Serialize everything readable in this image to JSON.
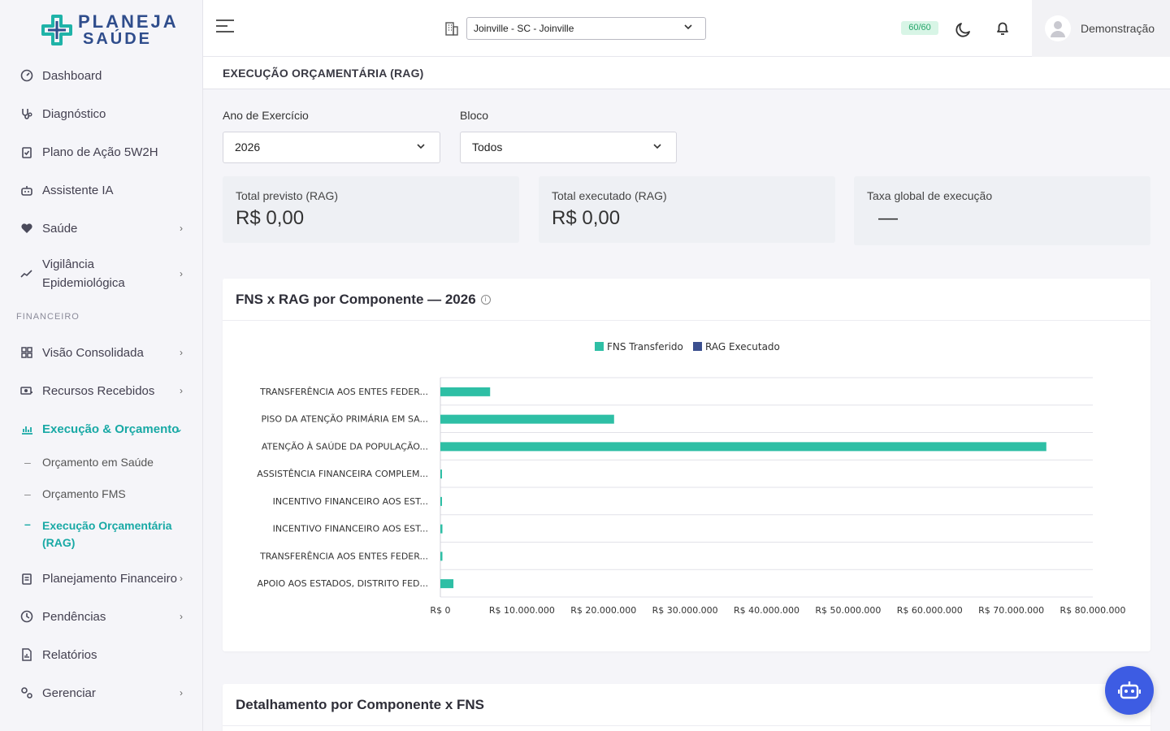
{
  "brand": {
    "line1": "PLANEJA",
    "line2": "SAÚDE"
  },
  "sidebar": {
    "items": [
      {
        "label": "Dashboard",
        "icon": "gauge-icon"
      },
      {
        "label": "Diagnóstico",
        "icon": "stethoscope-icon"
      },
      {
        "label": "Plano de Ação 5W2H",
        "icon": "clipboard-check-icon"
      },
      {
        "label": "Assistente IA",
        "icon": "robot-icon"
      },
      {
        "label": "Saúde",
        "icon": "heart-pulse-icon"
      },
      {
        "label": "Vigilância Epidemiológica",
        "icon": "trend-icon"
      },
      {
        "label": "Visão Consolidada",
        "icon": "grid-icon"
      },
      {
        "label": "Recursos Recebidos",
        "icon": "money-icon"
      },
      {
        "label": "Execução & Orçamento",
        "icon": "chart-icon"
      },
      {
        "label": "Planejamento Financeiro",
        "icon": "clipboard-icon"
      },
      {
        "label": "Pendências",
        "icon": "clock-icon"
      },
      {
        "label": "Relatórios",
        "icon": "report-icon"
      },
      {
        "label": "Gerenciar",
        "icon": "gears-icon"
      }
    ],
    "section_financeiro": "FINANCEIRO",
    "subitems": [
      {
        "label": "Orçamento em Saúde"
      },
      {
        "label": "Orçamento FMS"
      },
      {
        "label": "Execução Orçamentária (RAG)"
      }
    ]
  },
  "topbar": {
    "city": "Joinville - SC - Joinville",
    "quota": "60/60",
    "user": "Demonstração"
  },
  "page": {
    "title": "EXECUÇÃO ORÇAMENTÁRIA (RAG)",
    "filters": {
      "year_label": "Ano de Exercício",
      "year_value": "2026",
      "block_label": "Bloco",
      "block_value": "Todos"
    },
    "stats": [
      {
        "label": "Total previsto (RAG)",
        "value": "R$ 0,00"
      },
      {
        "label": "Total executado (RAG)",
        "value": "R$ 0,00"
      },
      {
        "label": "Taxa global de execução",
        "value": "—"
      }
    ],
    "chart_card_title": "FNS x RAG por Componente — 2026",
    "detail_card_title": "Detalhamento por Componente x FNS"
  },
  "colors": {
    "accent": "#18a9a5",
    "fns": "#2ebfa5",
    "rag": "#3b4f8f",
    "fab": "#3d5ce3"
  },
  "chart_data": {
    "type": "bar",
    "orientation": "horizontal",
    "categories": [
      "TRANSFERÊNCIA AOS ENTES FEDER...",
      "PISO DA ATENÇÃO PRIMÁRIA EM SA...",
      "ATENÇÃO À SAÚDE DA POPULAÇÃO...",
      "ASSISTÊNCIA FINANCEIRA COMPLEM...",
      "INCENTIVO FINANCEIRO AOS EST...",
      "INCENTIVO FINANCEIRO AOS EST...",
      "TRANSFERÊNCIA AOS ENTES FEDER...",
      "APOIO AOS ESTADOS, DISTRITO FED..."
    ],
    "series": [
      {
        "name": "FNS Transferido",
        "values": [
          6100000,
          21300000,
          74300000,
          50000,
          150000,
          250000,
          250000,
          1600000
        ]
      },
      {
        "name": "RAG Executado",
        "values": [
          0,
          0,
          0,
          0,
          0,
          0,
          0,
          0
        ]
      }
    ],
    "xlim": [
      0,
      80000000
    ],
    "xticks": [
      "R$ 0",
      "R$ 10.000.000",
      "R$ 20.000.000",
      "R$ 30.000.000",
      "R$ 40.000.000",
      "R$ 50.000.000",
      "R$ 60.000.000",
      "R$ 70.000.000",
      "R$ 80.000.000"
    ],
    "legend": "top-center",
    "grid": true
  }
}
